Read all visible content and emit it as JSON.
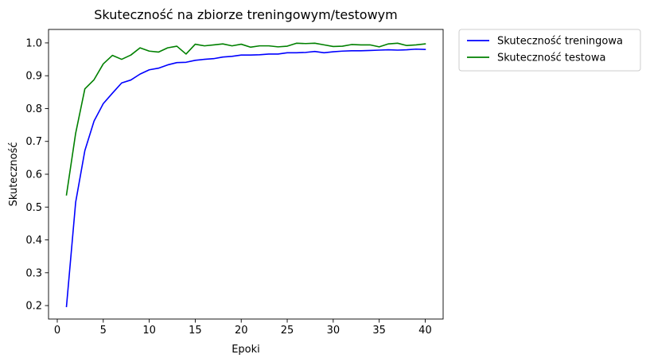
{
  "chart_data": {
    "type": "line",
    "title": "Skuteczność na zbiorze treningowym/testowym",
    "xlabel": "Epoki",
    "ylabel": "Skuteczność",
    "xlim": [
      -0.95,
      41.95
    ],
    "ylim": [
      0.159,
      1.041
    ],
    "xticks": [
      0,
      5,
      10,
      15,
      20,
      25,
      30,
      35,
      40
    ],
    "yticks": [
      0.2,
      0.3,
      0.4,
      0.5,
      0.6,
      0.7,
      0.8,
      0.9,
      1.0
    ],
    "ytick_labels": [
      "0.2",
      "0.3",
      "0.4",
      "0.5",
      "0.6",
      "0.7",
      "0.8",
      "0.9",
      "1.0"
    ],
    "grid": false,
    "legend_position": "outside-top-right",
    "x": [
      1,
      2,
      3,
      4,
      5,
      6,
      7,
      8,
      9,
      10,
      11,
      12,
      13,
      14,
      15,
      16,
      17,
      18,
      19,
      20,
      21,
      22,
      23,
      24,
      25,
      26,
      27,
      28,
      29,
      30,
      31,
      32,
      33,
      34,
      35,
      36,
      37,
      38,
      39,
      40
    ],
    "series": [
      {
        "name": "Skuteczność treningowa",
        "color": "#0000ff",
        "values": [
          0.197,
          0.515,
          0.672,
          0.762,
          0.815,
          0.847,
          0.878,
          0.887,
          0.905,
          0.918,
          0.923,
          0.933,
          0.94,
          0.941,
          0.947,
          0.95,
          0.952,
          0.957,
          0.959,
          0.963,
          0.963,
          0.964,
          0.966,
          0.966,
          0.97,
          0.97,
          0.971,
          0.974,
          0.97,
          0.973,
          0.975,
          0.976,
          0.976,
          0.977,
          0.978,
          0.979,
          0.978,
          0.979,
          0.981,
          0.98
        ]
      },
      {
        "name": "Skuteczność testowa",
        "color": "#008000",
        "values": [
          0.537,
          0.725,
          0.86,
          0.888,
          0.936,
          0.962,
          0.95,
          0.963,
          0.985,
          0.975,
          0.972,
          0.985,
          0.99,
          0.966,
          0.996,
          0.991,
          0.994,
          0.997,
          0.991,
          0.996,
          0.987,
          0.991,
          0.991,
          0.988,
          0.99,
          0.999,
          0.998,
          0.999,
          0.994,
          0.989,
          0.99,
          0.995,
          0.994,
          0.994,
          0.988,
          0.997,
          0.999,
          0.992,
          0.994,
          0.997
        ]
      }
    ]
  }
}
